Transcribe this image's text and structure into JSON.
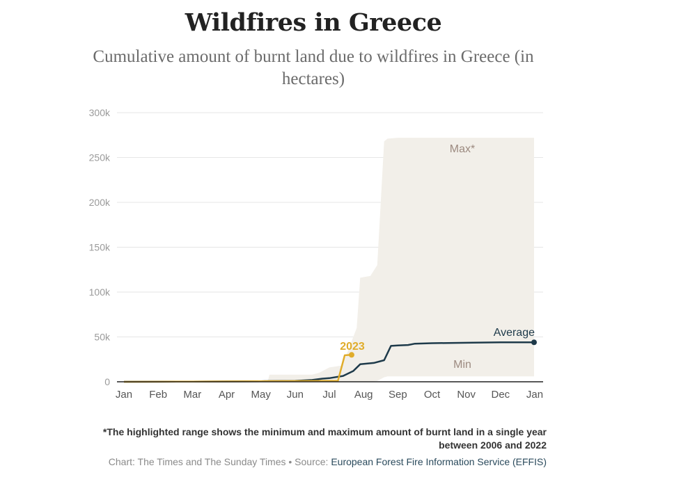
{
  "chart_data": {
    "type": "area",
    "title": "Wildfires in Greece",
    "subtitle": "Cumulative amount of burnt land due to wildfires in Greece (in hectares)",
    "x_ticks": [
      "Jan",
      "Feb",
      "Mar",
      "Apr",
      "May",
      "Jun",
      "Jul",
      "Aug",
      "Sep",
      "Oct",
      "Nov",
      "Dec",
      "Jan"
    ],
    "y_ticks": [
      "0",
      "50k",
      "100k",
      "150k",
      "200k",
      "250k",
      "300k"
    ],
    "ylim": [
      0,
      300000
    ],
    "xlim": [
      0,
      12
    ],
    "grid": true,
    "range": {
      "max_label": "Max*",
      "min_label": "Min",
      "x": [
        0,
        4.2,
        4.25,
        5.5,
        5.7,
        6.0,
        6.35,
        6.5,
        6.8,
        6.9,
        7.2,
        7.4,
        7.6,
        7.7,
        8.0,
        11.98
      ],
      "max": [
        0,
        200,
        8000,
        8000,
        10000,
        16000,
        18000,
        30000,
        60000,
        116000,
        118000,
        130000,
        268000,
        271000,
        272000,
        272000
      ],
      "min": [
        0,
        0,
        0,
        0,
        0,
        0,
        0,
        0,
        0,
        0,
        0,
        1000,
        5000,
        6000,
        6000,
        6000
      ]
    },
    "series": [
      {
        "name": "Average",
        "color": "#1e3a4a",
        "x": [
          0,
          1,
          2,
          3,
          4,
          4.2,
          5,
          5.5,
          5.8,
          6.0,
          6.4,
          6.7,
          6.9,
          7.3,
          7.6,
          7.8,
          8.0,
          8.3,
          8.5,
          9.0,
          10.0,
          11.0,
          11.98
        ],
        "values": [
          0,
          100,
          200,
          400,
          600,
          800,
          1000,
          2000,
          3500,
          4000,
          6500,
          12000,
          19500,
          21000,
          24000,
          40000,
          40500,
          41000,
          42500,
          43000,
          43500,
          44000,
          44000
        ]
      },
      {
        "name": "2023",
        "color": "#e0ac2a",
        "x": [
          0,
          1,
          2,
          3,
          4,
          5,
          5.8,
          6.25,
          6.45,
          6.65
        ],
        "values": [
          0,
          100,
          200,
          400,
          600,
          800,
          1000,
          1000,
          29500,
          30000
        ]
      }
    ],
    "note": "*The highlighted range shows the minimum and maximum amount of burnt land in a single year between 2006 and 2022",
    "credit_prefix": "Chart: The Times and The Sunday Times • Source: ",
    "credit_source": "European Forest Fire Information Service (EFFIS)"
  },
  "colors": {
    "range_fill": "#f2efe9",
    "range_label": "#9c8a80",
    "average": "#1e3a4a",
    "y2023": "#e0ac2a",
    "grid": "#e6e6e6",
    "axis": "#222222"
  }
}
